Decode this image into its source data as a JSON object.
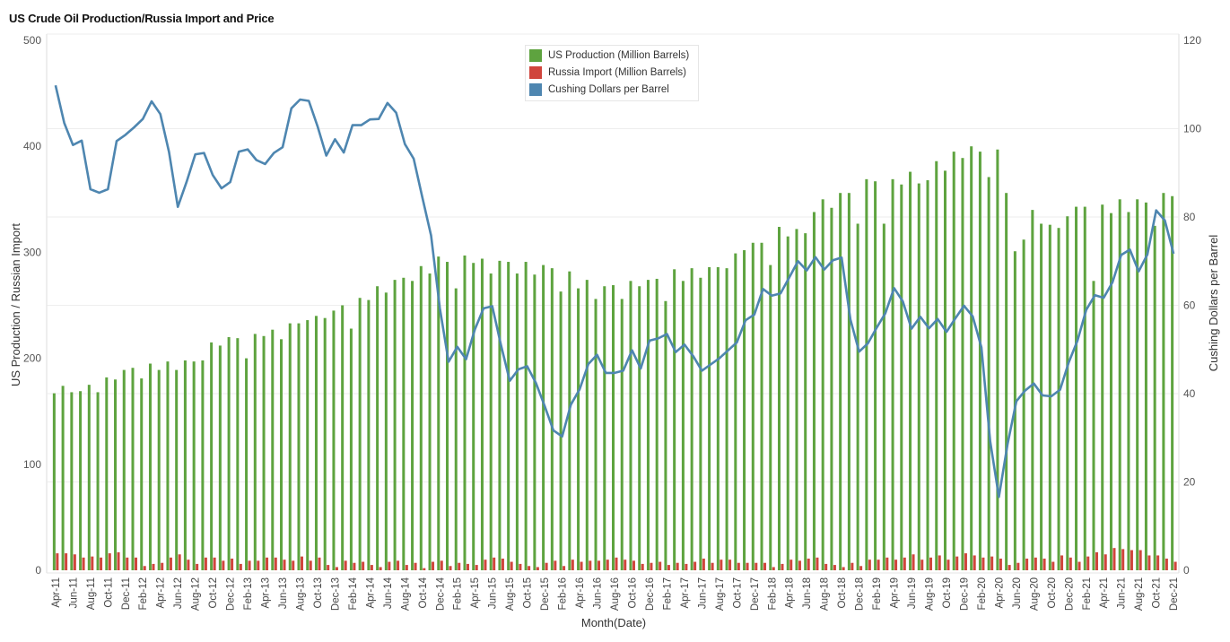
{
  "title": "US Crude Oil Production/Russia Import and Price",
  "chart_data": {
    "type": "bar",
    "title": "US Crude Oil Production/Russia Import and Price",
    "xlabel": "Month(Date)",
    "ylabel": "US Production / Russian Import",
    "y2label": "Cushing Dollars per Barrel",
    "ylim": [
      0,
      500
    ],
    "y2lim": [
      0,
      120
    ],
    "yticks": [
      "0",
      "100",
      "200",
      "300",
      "400",
      "500"
    ],
    "y2ticks": [
      "0",
      "20",
      "40",
      "60",
      "80",
      "100",
      "120"
    ],
    "grid": true,
    "legend_position": "top-center",
    "colors": {
      "us_production": "#5ea33f",
      "russia_import": "#d0453c",
      "cushing": "#4e86b0"
    },
    "legend": [
      "US Production (Million Barrels)",
      "Russia Import (Million Barrels)",
      "Cushing Dollars per Barrel"
    ],
    "start_month": "Apr-11",
    "categories": [
      "Apr-11",
      "May-11",
      "Jun-11",
      "Jul-11",
      "Aug-11",
      "Sep-11",
      "Oct-11",
      "Nov-11",
      "Dec-11",
      "Jan-12",
      "Feb-12",
      "Mar-12",
      "Apr-12",
      "May-12",
      "Jun-12",
      "Jul-12",
      "Aug-12",
      "Sep-12",
      "Oct-12",
      "Nov-12",
      "Dec-12",
      "Jan-13",
      "Feb-13",
      "Mar-13",
      "Apr-13",
      "May-13",
      "Jun-13",
      "Jul-13",
      "Aug-13",
      "Sep-13",
      "Oct-13",
      "Nov-13",
      "Dec-13",
      "Jan-14",
      "Feb-14",
      "Mar-14",
      "Apr-14",
      "May-14",
      "Jun-14",
      "Jul-14",
      "Aug-14",
      "Sep-14",
      "Oct-14",
      "Nov-14",
      "Dec-14",
      "Jan-15",
      "Feb-15",
      "Mar-15",
      "Apr-15",
      "May-15",
      "Jun-15",
      "Jul-15",
      "Aug-15",
      "Sep-15",
      "Oct-15",
      "Nov-15",
      "Dec-15",
      "Jan-16",
      "Feb-16",
      "Mar-16",
      "Apr-16",
      "May-16",
      "Jun-16",
      "Jul-16",
      "Aug-16",
      "Sep-16",
      "Oct-16",
      "Nov-16",
      "Dec-16",
      "Jan-17",
      "Feb-17",
      "Mar-17",
      "Apr-17",
      "May-17",
      "Jun-17",
      "Jul-17",
      "Aug-17",
      "Sep-17",
      "Oct-17",
      "Nov-17",
      "Dec-17",
      "Jan-18",
      "Feb-18",
      "Mar-18",
      "Apr-18",
      "May-18",
      "Jun-18",
      "Jul-18",
      "Aug-18",
      "Sep-18",
      "Oct-18",
      "Nov-18",
      "Dec-18",
      "Jan-19",
      "Feb-19",
      "Mar-19",
      "Apr-19",
      "May-19",
      "Jun-19",
      "Jul-19",
      "Aug-19",
      "Sep-19",
      "Oct-19",
      "Nov-19",
      "Dec-19",
      "Jan-20",
      "Feb-20",
      "Mar-20",
      "Apr-20",
      "May-20",
      "Jun-20",
      "Jul-20",
      "Aug-20",
      "Sep-20",
      "Oct-20",
      "Nov-20",
      "Dec-20",
      "Jan-21",
      "Feb-21",
      "Mar-21",
      "Apr-21",
      "May-21",
      "Jun-21",
      "Jul-21",
      "Aug-21",
      "Sep-21",
      "Oct-21",
      "Nov-21",
      "Dec-21"
    ],
    "xtick_labels_every": 2,
    "series": [
      {
        "name": "US Production (Million Barrels)",
        "type": "bar",
        "axis": "left",
        "values": [
          167,
          174,
          168,
          169,
          175,
          168,
          182,
          180,
          189,
          191,
          181,
          195,
          189,
          197,
          189,
          198,
          197,
          198,
          215,
          212,
          220,
          219,
          200,
          223,
          221,
          227,
          218,
          233,
          233,
          236,
          240,
          238,
          245,
          250,
          228,
          257,
          255,
          268,
          262,
          274,
          276,
          273,
          287,
          280,
          296,
          291,
          266,
          297,
          290,
          294,
          280,
          292,
          291,
          280,
          291,
          279,
          288,
          285,
          263,
          282,
          266,
          274,
          256,
          268,
          269,
          256,
          273,
          268,
          274,
          275,
          254,
          284,
          273,
          285,
          276,
          286,
          286,
          285,
          299,
          302,
          309,
          309,
          288,
          324,
          315,
          322,
          318,
          338,
          350,
          342,
          356,
          356,
          327,
          369,
          367,
          327,
          369,
          364,
          376,
          365,
          368,
          386,
          377,
          395,
          389,
          400,
          395,
          371,
          397,
          356,
          301,
          312,
          340,
          327,
          326,
          323,
          334,
          343,
          343,
          273,
          345,
          337,
          350,
          338,
          350,
          347,
          325,
          356,
          353
        ]
      },
      {
        "name": "Russia Import (Million Barrels)",
        "type": "bar",
        "axis": "left",
        "values": [
          16,
          16,
          15,
          12,
          13,
          12,
          16,
          17,
          12,
          12,
          4,
          6,
          7,
          12,
          15,
          10,
          6,
          12,
          12,
          9,
          11,
          6,
          9,
          9,
          12,
          12,
          10,
          9,
          13,
          9,
          12,
          5,
          3,
          9,
          7,
          8,
          5,
          3,
          8,
          9,
          5,
          7,
          2,
          8,
          9,
          4,
          7,
          6,
          5,
          10,
          12,
          11,
          8,
          6,
          4,
          3,
          7,
          9,
          4,
          10,
          8,
          9,
          9,
          10,
          12,
          10,
          9,
          6,
          7,
          8,
          5,
          7,
          6,
          8,
          11,
          7,
          10,
          10,
          7,
          7,
          7,
          7,
          3,
          6,
          10,
          9,
          11,
          12,
          6,
          5,
          3,
          7,
          4,
          10,
          10,
          12,
          10,
          12,
          15,
          10,
          12,
          14,
          10,
          13,
          16,
          14,
          12,
          13,
          11,
          5,
          7,
          11,
          12,
          11,
          8,
          14,
          12,
          8,
          13,
          17,
          15,
          21,
          20,
          19,
          19,
          14,
          14,
          11,
          8
        ]
      },
      {
        "name": "Cushing Dollars per Barrel",
        "type": "line",
        "axis": "right",
        "values": [
          109.8,
          101.3,
          96.3,
          97.3,
          86.3,
          85.5,
          86.3,
          97.2,
          98.6,
          100.3,
          102.2,
          106.2,
          103.3,
          94.7,
          82.3,
          87.9,
          94.2,
          94.5,
          89.5,
          86.5,
          87.9,
          94.8,
          95.3,
          92.9,
          92.0,
          94.5,
          95.8,
          104.6,
          106.6,
          106.3,
          100.5,
          93.9,
          97.6,
          94.6,
          100.8,
          100.8,
          102.1,
          102.2,
          105.8,
          103.6,
          96.5,
          93.2,
          84.4,
          75.8,
          59.3,
          47.2,
          50.6,
          47.8,
          54.5,
          59.3,
          59.8,
          51.0,
          42.9,
          45.5,
          46.2,
          42.4,
          37.2,
          31.7,
          30.3,
          37.5,
          41.0,
          46.7,
          48.8,
          44.7,
          44.7,
          45.2,
          49.8,
          45.7,
          52.0,
          52.5,
          53.5,
          49.4,
          51.1,
          48.5,
          45.2,
          46.6,
          48.0,
          49.8,
          51.6,
          56.6,
          57.9,
          63.7,
          62.2,
          62.7,
          66.3,
          70.0,
          67.9,
          70.9,
          68.1,
          70.2,
          70.8,
          56.8,
          49.5,
          51.4,
          54.9,
          58.2,
          63.9,
          60.9,
          54.7,
          57.4,
          54.8,
          56.9,
          54.0,
          57.0,
          59.9,
          57.5,
          50.5,
          29.2,
          16.6,
          28.6,
          38.3,
          40.7,
          42.3,
          39.6,
          39.4,
          40.9,
          47.1,
          52.0,
          59.0,
          62.3,
          61.7,
          65.2,
          71.4,
          72.6,
          67.7,
          71.5,
          81.5,
          79.2,
          71.7
        ]
      }
    ]
  }
}
